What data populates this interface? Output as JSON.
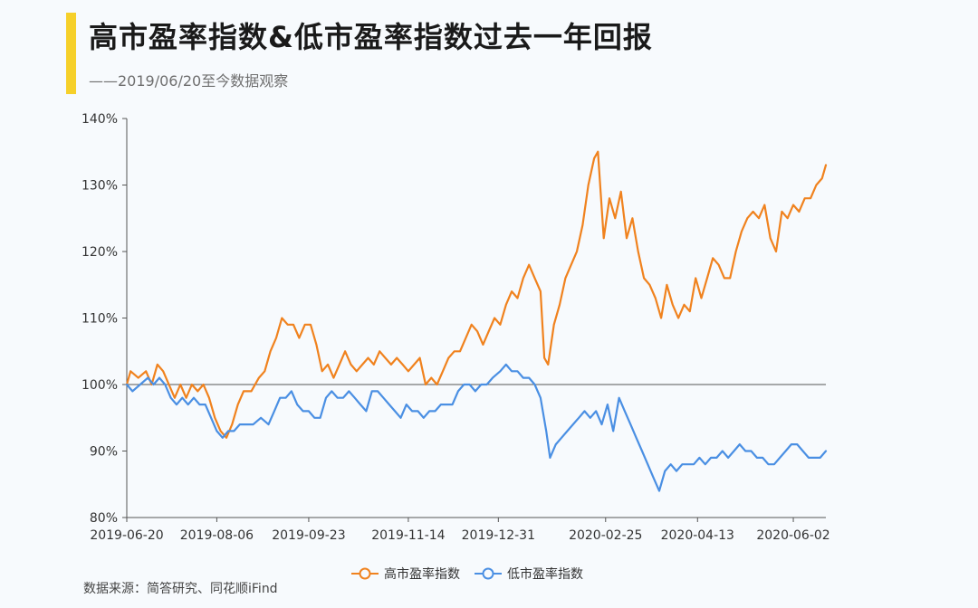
{
  "header": {
    "title": "高市盈率指数&低市盈率指数过去一年回报",
    "subtitle": "——2019/06/20至今数据观察"
  },
  "footer": {
    "source": "数据来源：简答研究、同花顺iFind"
  },
  "colors": {
    "high_pe": "#f0821e",
    "low_pe": "#4a8fe3",
    "accent": "#f6d02a",
    "axis": "#555555"
  },
  "chart_data": {
    "type": "line",
    "title": "高市盈率指数&低市盈率指数过去一年回报",
    "xlabel": "",
    "ylabel": "",
    "ylim": [
      0.8,
      1.4
    ],
    "yticks": [
      0.8,
      0.9,
      1.0,
      1.1,
      1.2,
      1.3,
      1.4
    ],
    "ytick_labels": [
      "80%",
      "90%",
      "100%",
      "110%",
      "120%",
      "130%",
      "140%"
    ],
    "xticks": [
      "2019-06-20",
      "2019-08-06",
      "2019-09-23",
      "2019-11-14",
      "2019-12-31",
      "2020-02-25",
      "2020-04-13",
      "2020-06-02"
    ],
    "x_end": "2020-06-19",
    "grid": false,
    "legend_position": "bottom",
    "series": [
      {
        "name": "高市盈率指数",
        "color": "#f0821e",
        "points": [
          [
            "2019-06-20",
            1.0
          ],
          [
            "2019-06-22",
            1.02
          ],
          [
            "2019-06-26",
            1.01
          ],
          [
            "2019-06-30",
            1.02
          ],
          [
            "2019-07-03",
            1.0
          ],
          [
            "2019-07-06",
            1.03
          ],
          [
            "2019-07-09",
            1.02
          ],
          [
            "2019-07-12",
            1.0
          ],
          [
            "2019-07-15",
            0.98
          ],
          [
            "2019-07-18",
            1.0
          ],
          [
            "2019-07-21",
            0.98
          ],
          [
            "2019-07-24",
            1.0
          ],
          [
            "2019-07-27",
            0.99
          ],
          [
            "2019-07-30",
            1.0
          ],
          [
            "2019-08-02",
            0.98
          ],
          [
            "2019-08-05",
            0.95
          ],
          [
            "2019-08-08",
            0.93
          ],
          [
            "2019-08-11",
            0.92
          ],
          [
            "2019-08-14",
            0.94
          ],
          [
            "2019-08-17",
            0.97
          ],
          [
            "2019-08-20",
            0.99
          ],
          [
            "2019-08-24",
            0.99
          ],
          [
            "2019-08-28",
            1.01
          ],
          [
            "2019-08-31",
            1.02
          ],
          [
            "2019-09-03",
            1.05
          ],
          [
            "2019-09-06",
            1.07
          ],
          [
            "2019-09-09",
            1.1
          ],
          [
            "2019-09-12",
            1.09
          ],
          [
            "2019-09-15",
            1.09
          ],
          [
            "2019-09-18",
            1.07
          ],
          [
            "2019-09-21",
            1.09
          ],
          [
            "2019-09-24",
            1.09
          ],
          [
            "2019-09-27",
            1.06
          ],
          [
            "2019-09-30",
            1.02
          ],
          [
            "2019-10-03",
            1.03
          ],
          [
            "2019-10-06",
            1.01
          ],
          [
            "2019-10-09",
            1.03
          ],
          [
            "2019-10-12",
            1.05
          ],
          [
            "2019-10-15",
            1.03
          ],
          [
            "2019-10-18",
            1.02
          ],
          [
            "2019-10-21",
            1.03
          ],
          [
            "2019-10-24",
            1.04
          ],
          [
            "2019-10-27",
            1.03
          ],
          [
            "2019-10-30",
            1.05
          ],
          [
            "2019-11-02",
            1.04
          ],
          [
            "2019-11-05",
            1.03
          ],
          [
            "2019-11-08",
            1.04
          ],
          [
            "2019-11-11",
            1.03
          ],
          [
            "2019-11-14",
            1.02
          ],
          [
            "2019-11-17",
            1.03
          ],
          [
            "2019-11-20",
            1.04
          ],
          [
            "2019-11-23",
            1.0
          ],
          [
            "2019-11-26",
            1.01
          ],
          [
            "2019-11-29",
            1.0
          ],
          [
            "2019-12-02",
            1.02
          ],
          [
            "2019-12-05",
            1.04
          ],
          [
            "2019-12-08",
            1.05
          ],
          [
            "2019-12-11",
            1.05
          ],
          [
            "2019-12-14",
            1.07
          ],
          [
            "2019-12-17",
            1.09
          ],
          [
            "2019-12-20",
            1.08
          ],
          [
            "2019-12-23",
            1.06
          ],
          [
            "2019-12-26",
            1.08
          ],
          [
            "2019-12-29",
            1.1
          ],
          [
            "2020-01-01",
            1.09
          ],
          [
            "2020-01-04",
            1.12
          ],
          [
            "2020-01-07",
            1.14
          ],
          [
            "2020-01-10",
            1.13
          ],
          [
            "2020-01-13",
            1.16
          ],
          [
            "2020-01-16",
            1.18
          ],
          [
            "2020-01-19",
            1.16
          ],
          [
            "2020-01-22",
            1.14
          ],
          [
            "2020-01-24",
            1.04
          ],
          [
            "2020-01-26",
            1.03
          ],
          [
            "2020-01-29",
            1.09
          ],
          [
            "2020-02-01",
            1.12
          ],
          [
            "2020-02-04",
            1.16
          ],
          [
            "2020-02-07",
            1.18
          ],
          [
            "2020-02-10",
            1.2
          ],
          [
            "2020-02-13",
            1.24
          ],
          [
            "2020-02-16",
            1.3
          ],
          [
            "2020-02-19",
            1.34
          ],
          [
            "2020-02-21",
            1.35
          ],
          [
            "2020-02-24",
            1.22
          ],
          [
            "2020-02-27",
            1.28
          ],
          [
            "2020-03-01",
            1.25
          ],
          [
            "2020-03-04",
            1.29
          ],
          [
            "2020-03-07",
            1.22
          ],
          [
            "2020-03-10",
            1.25
          ],
          [
            "2020-03-13",
            1.2
          ],
          [
            "2020-03-16",
            1.16
          ],
          [
            "2020-03-19",
            1.15
          ],
          [
            "2020-03-22",
            1.13
          ],
          [
            "2020-03-25",
            1.1
          ],
          [
            "2020-03-28",
            1.15
          ],
          [
            "2020-03-31",
            1.12
          ],
          [
            "2020-04-03",
            1.1
          ],
          [
            "2020-04-06",
            1.12
          ],
          [
            "2020-04-09",
            1.11
          ],
          [
            "2020-04-12",
            1.16
          ],
          [
            "2020-04-15",
            1.13
          ],
          [
            "2020-04-18",
            1.16
          ],
          [
            "2020-04-21",
            1.19
          ],
          [
            "2020-04-24",
            1.18
          ],
          [
            "2020-04-27",
            1.16
          ],
          [
            "2020-04-30",
            1.16
          ],
          [
            "2020-05-03",
            1.2
          ],
          [
            "2020-05-06",
            1.23
          ],
          [
            "2020-05-09",
            1.25
          ],
          [
            "2020-05-12",
            1.26
          ],
          [
            "2020-05-15",
            1.25
          ],
          [
            "2020-05-18",
            1.27
          ],
          [
            "2020-05-21",
            1.22
          ],
          [
            "2020-05-24",
            1.2
          ],
          [
            "2020-05-27",
            1.26
          ],
          [
            "2020-05-30",
            1.25
          ],
          [
            "2020-06-02",
            1.27
          ],
          [
            "2020-06-05",
            1.26
          ],
          [
            "2020-06-08",
            1.28
          ],
          [
            "2020-06-11",
            1.28
          ],
          [
            "2020-06-14",
            1.3
          ],
          [
            "2020-06-17",
            1.31
          ],
          [
            "2020-06-19",
            1.33
          ]
        ]
      },
      {
        "name": "低市盈率指数",
        "color": "#4a8fe3",
        "points": [
          [
            "2019-06-20",
            1.0
          ],
          [
            "2019-06-23",
            0.99
          ],
          [
            "2019-06-27",
            1.0
          ],
          [
            "2019-07-01",
            1.01
          ],
          [
            "2019-07-04",
            1.0
          ],
          [
            "2019-07-07",
            1.01
          ],
          [
            "2019-07-10",
            1.0
          ],
          [
            "2019-07-13",
            0.98
          ],
          [
            "2019-07-16",
            0.97
          ],
          [
            "2019-07-19",
            0.98
          ],
          [
            "2019-07-22",
            0.97
          ],
          [
            "2019-07-25",
            0.98
          ],
          [
            "2019-07-28",
            0.97
          ],
          [
            "2019-07-31",
            0.97
          ],
          [
            "2019-08-03",
            0.95
          ],
          [
            "2019-08-06",
            0.93
          ],
          [
            "2019-08-09",
            0.92
          ],
          [
            "2019-08-12",
            0.93
          ],
          [
            "2019-08-15",
            0.93
          ],
          [
            "2019-08-18",
            0.94
          ],
          [
            "2019-08-21",
            0.94
          ],
          [
            "2019-08-25",
            0.94
          ],
          [
            "2019-08-29",
            0.95
          ],
          [
            "2019-09-02",
            0.94
          ],
          [
            "2019-09-05",
            0.96
          ],
          [
            "2019-09-08",
            0.98
          ],
          [
            "2019-09-11",
            0.98
          ],
          [
            "2019-09-14",
            0.99
          ],
          [
            "2019-09-17",
            0.97
          ],
          [
            "2019-09-20",
            0.96
          ],
          [
            "2019-09-23",
            0.96
          ],
          [
            "2019-09-26",
            0.95
          ],
          [
            "2019-09-29",
            0.95
          ],
          [
            "2019-10-02",
            0.98
          ],
          [
            "2019-10-05",
            0.99
          ],
          [
            "2019-10-08",
            0.98
          ],
          [
            "2019-10-11",
            0.98
          ],
          [
            "2019-10-14",
            0.99
          ],
          [
            "2019-10-17",
            0.98
          ],
          [
            "2019-10-20",
            0.97
          ],
          [
            "2019-10-23",
            0.96
          ],
          [
            "2019-10-26",
            0.99
          ],
          [
            "2019-10-29",
            0.99
          ],
          [
            "2019-11-01",
            0.98
          ],
          [
            "2019-11-04",
            0.97
          ],
          [
            "2019-11-07",
            0.96
          ],
          [
            "2019-11-10",
            0.95
          ],
          [
            "2019-11-13",
            0.97
          ],
          [
            "2019-11-16",
            0.96
          ],
          [
            "2019-11-19",
            0.96
          ],
          [
            "2019-11-22",
            0.95
          ],
          [
            "2019-11-25",
            0.96
          ],
          [
            "2019-11-28",
            0.96
          ],
          [
            "2019-12-01",
            0.97
          ],
          [
            "2019-12-04",
            0.97
          ],
          [
            "2019-12-07",
            0.97
          ],
          [
            "2019-12-10",
            0.99
          ],
          [
            "2019-12-13",
            1.0
          ],
          [
            "2019-12-16",
            1.0
          ],
          [
            "2019-12-19",
            0.99
          ],
          [
            "2019-12-22",
            1.0
          ],
          [
            "2019-12-25",
            1.0
          ],
          [
            "2019-12-28",
            1.01
          ],
          [
            "2020-01-01",
            1.02
          ],
          [
            "2020-01-04",
            1.03
          ],
          [
            "2020-01-07",
            1.02
          ],
          [
            "2020-01-10",
            1.02
          ],
          [
            "2020-01-13",
            1.01
          ],
          [
            "2020-01-16",
            1.01
          ],
          [
            "2020-01-19",
            1.0
          ],
          [
            "2020-01-22",
            0.98
          ],
          [
            "2020-01-25",
            0.93
          ],
          [
            "2020-01-27",
            0.89
          ],
          [
            "2020-01-30",
            0.91
          ],
          [
            "2020-02-02",
            0.92
          ],
          [
            "2020-02-05",
            0.93
          ],
          [
            "2020-02-08",
            0.94
          ],
          [
            "2020-02-11",
            0.95
          ],
          [
            "2020-02-14",
            0.96
          ],
          [
            "2020-02-17",
            0.95
          ],
          [
            "2020-02-20",
            0.96
          ],
          [
            "2020-02-23",
            0.94
          ],
          [
            "2020-02-26",
            0.97
          ],
          [
            "2020-02-29",
            0.93
          ],
          [
            "2020-03-03",
            0.98
          ],
          [
            "2020-03-06",
            0.96
          ],
          [
            "2020-03-09",
            0.94
          ],
          [
            "2020-03-12",
            0.92
          ],
          [
            "2020-03-15",
            0.9
          ],
          [
            "2020-03-18",
            0.88
          ],
          [
            "2020-03-21",
            0.86
          ],
          [
            "2020-03-24",
            0.84
          ],
          [
            "2020-03-27",
            0.87
          ],
          [
            "2020-03-30",
            0.88
          ],
          [
            "2020-04-02",
            0.87
          ],
          [
            "2020-04-05",
            0.88
          ],
          [
            "2020-04-08",
            0.88
          ],
          [
            "2020-04-11",
            0.88
          ],
          [
            "2020-04-14",
            0.89
          ],
          [
            "2020-04-17",
            0.88
          ],
          [
            "2020-04-20",
            0.89
          ],
          [
            "2020-04-23",
            0.89
          ],
          [
            "2020-04-26",
            0.9
          ],
          [
            "2020-04-29",
            0.89
          ],
          [
            "2020-05-02",
            0.9
          ],
          [
            "2020-05-05",
            0.91
          ],
          [
            "2020-05-08",
            0.9
          ],
          [
            "2020-05-11",
            0.9
          ],
          [
            "2020-05-14",
            0.89
          ],
          [
            "2020-05-17",
            0.89
          ],
          [
            "2020-05-20",
            0.88
          ],
          [
            "2020-05-23",
            0.88
          ],
          [
            "2020-05-26",
            0.89
          ],
          [
            "2020-05-29",
            0.9
          ],
          [
            "2020-06-01",
            0.91
          ],
          [
            "2020-06-04",
            0.91
          ],
          [
            "2020-06-07",
            0.9
          ],
          [
            "2020-06-10",
            0.89
          ],
          [
            "2020-06-13",
            0.89
          ],
          [
            "2020-06-16",
            0.89
          ],
          [
            "2020-06-19",
            0.9
          ]
        ]
      }
    ]
  }
}
